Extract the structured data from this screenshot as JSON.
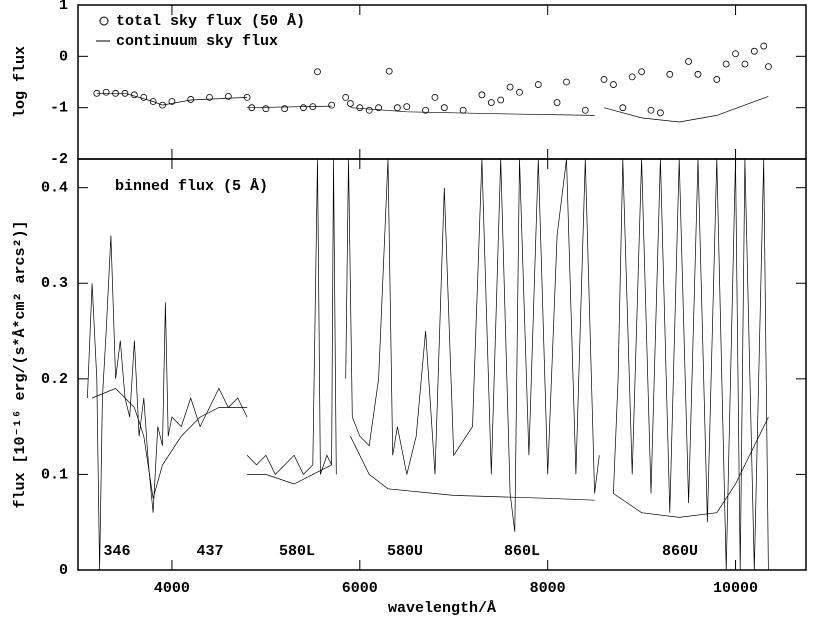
{
  "chart_data": [
    {
      "type": "line",
      "ylabel": "log flux",
      "xlim": [
        3000,
        10750
      ],
      "xticks": [
        4000,
        6000,
        8000,
        10000
      ],
      "ylim": [
        -2,
        1
      ],
      "yticks": [
        -2,
        -1,
        0,
        1
      ],
      "legend": "upper left",
      "series": [
        {
          "name": "total sky flux (50 Å)",
          "style": "markers",
          "color": "#000000",
          "x": [
            3200,
            3300,
            3400,
            3500,
            3600,
            3700,
            3800,
            3900,
            4000,
            4200,
            4400,
            4600,
            4800,
            4850,
            5000,
            5200,
            5400,
            5500,
            5549,
            5700,
            5850,
            5900,
            6000,
            6100,
            6200,
            6313,
            6400,
            6500,
            6700,
            6800,
            6900,
            7100,
            7300,
            7400,
            7500,
            7600,
            7700,
            7900,
            8100,
            8200,
            8400,
            8600,
            8700,
            8800,
            8900,
            9000,
            9100,
            9200,
            9300,
            9500,
            9600,
            9800,
            9900,
            10000,
            10100,
            10200,
            10300,
            10350
          ],
          "values": [
            -0.72,
            -0.7,
            -0.72,
            -0.72,
            -0.75,
            -0.8,
            -0.88,
            -0.95,
            -0.88,
            -0.84,
            -0.8,
            -0.78,
            -0.8,
            -1.0,
            -1.02,
            -1.02,
            -1.0,
            -0.98,
            -0.3,
            -0.95,
            -0.8,
            -0.92,
            -1.0,
            -1.05,
            -1.0,
            -0.29,
            -1.0,
            -0.98,
            -1.05,
            -0.8,
            -1.0,
            -1.05,
            -0.75,
            -0.9,
            -0.85,
            -0.6,
            -0.7,
            -0.55,
            -0.9,
            -0.5,
            -1.05,
            -0.45,
            -0.55,
            -1.0,
            -0.4,
            -0.3,
            -1.05,
            -1.1,
            -0.35,
            -0.1,
            -0.35,
            -0.45,
            -0.15,
            0.05,
            -0.15,
            0.1,
            0.2,
            -0.2
          ]
        },
        {
          "name": "continuum sky flux",
          "style": "line",
          "color": "#000000",
          "x": [
            3200,
            3500,
            3800,
            3900,
            4200,
            4800,
            null,
            4800,
            5700,
            null,
            5900,
            6500,
            7500,
            8500,
            null,
            8600,
            9000,
            9400,
            9800,
            10350
          ],
          "values": [
            -0.72,
            -0.72,
            -0.88,
            -0.95,
            -0.85,
            -0.8,
            null,
            -1.0,
            -0.97,
            null,
            -1.0,
            -1.08,
            -1.12,
            -1.15,
            null,
            -1.0,
            -1.2,
            -1.28,
            -1.15,
            -0.78
          ]
        }
      ]
    },
    {
      "type": "line",
      "xlabel": "wavelength/Å",
      "ylabel": "flux [10⁻¹⁶ erg/(s*Å*cm² arcs²)]",
      "xlim": [
        3000,
        10750
      ],
      "xticks": [
        4000,
        6000,
        8000,
        10000
      ],
      "ylim": [
        0,
        0.43
      ],
      "yticks": [
        0,
        0.1,
        0.2,
        0.3,
        0.4
      ],
      "annotations": [
        "346",
        "437",
        "580L",
        "580U",
        "860L",
        "860U"
      ],
      "series": [
        {
          "name": "binned flux (5 Å)",
          "style": "line",
          "color": "#000000",
          "x": [
            3100,
            3150,
            3200,
            3230,
            3260,
            3300,
            3350,
            3400,
            3450,
            3500,
            3550,
            3600,
            3650,
            3700,
            3750,
            3800,
            3850,
            3900,
            3930,
            3960,
            4000,
            4100,
            4200,
            4300,
            4400,
            4500,
            4600,
            4700,
            4800,
            null,
            4800,
            4900,
            5000,
            5100,
            5200,
            5300,
            5400,
            5500,
            5550,
            5580,
            5650,
            5700,
            5720,
            5750,
            null,
            5850,
            5880,
            5920,
            6000,
            6100,
            6200,
            6300,
            6350,
            6400,
            6500,
            6600,
            6700,
            6800,
            6900,
            7000,
            7200,
            7300,
            7400,
            7500,
            7600,
            7650,
            7700,
            7800,
            7900,
            8000,
            8100,
            8200,
            8300,
            8400,
            8500,
            8550,
            null,
            8700,
            8750,
            8800,
            8900,
            9000,
            9100,
            9200,
            9300,
            9400,
            9500,
            9600,
            9700,
            9800,
            9900,
            10000,
            10050,
            10100,
            10200,
            10300,
            10350
          ],
          "values": [
            0.18,
            0.3,
            0.2,
            0.0,
            0.18,
            0.25,
            0.35,
            0.2,
            0.24,
            0.18,
            0.16,
            0.24,
            0.14,
            0.18,
            0.11,
            0.06,
            0.15,
            0.13,
            0.28,
            0.14,
            0.16,
            0.15,
            0.18,
            0.15,
            0.17,
            0.19,
            0.17,
            0.18,
            0.16,
            null,
            0.12,
            0.11,
            0.12,
            0.1,
            0.11,
            0.12,
            0.1,
            0.11,
            0.43,
            0.1,
            0.12,
            0.11,
            0.43,
            0.1,
            null,
            0.2,
            0.43,
            0.16,
            0.14,
            0.13,
            0.2,
            0.43,
            0.12,
            0.15,
            0.1,
            0.14,
            0.25,
            0.1,
            0.4,
            0.12,
            0.15,
            0.43,
            0.1,
            0.43,
            0.08,
            0.04,
            0.43,
            0.12,
            0.43,
            0.1,
            0.35,
            0.43,
            0.1,
            0.43,
            0.08,
            0.12,
            null,
            0.08,
            0.2,
            0.43,
            0.1,
            0.43,
            0.08,
            0.43,
            0.06,
            0.43,
            0.07,
            0.43,
            0.05,
            0.43,
            0.0,
            0.43,
            0.0,
            0.43,
            0.0,
            0.43,
            0.0
          ]
        },
        {
          "style": "line",
          "color": "#000000",
          "x": [
            3150,
            3400,
            3600,
            3700,
            3800,
            3900,
            4100,
            4300,
            4500,
            4800,
            null,
            4800,
            5000,
            5300,
            5500,
            5700,
            null,
            5900,
            6100,
            6300,
            7000,
            8000,
            8500,
            null,
            8700,
            9000,
            9400,
            9800,
            10000,
            10350
          ],
          "values": [
            0.18,
            0.19,
            0.17,
            0.14,
            0.075,
            0.11,
            0.14,
            0.16,
            0.17,
            0.17,
            null,
            0.1,
            0.1,
            0.09,
            0.1,
            0.11,
            null,
            0.14,
            0.1,
            0.085,
            0.078,
            0.075,
            0.073,
            null,
            0.08,
            0.06,
            0.055,
            0.06,
            0.09,
            0.16
          ]
        }
      ]
    }
  ]
}
